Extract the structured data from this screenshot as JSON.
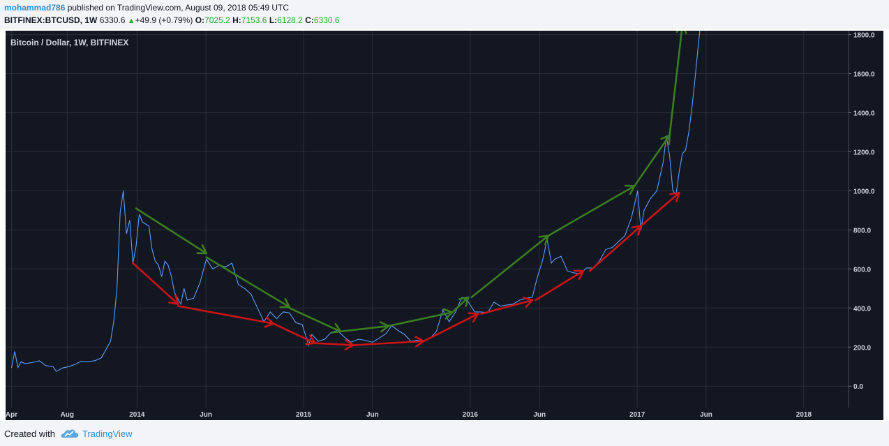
{
  "header": {
    "author": "mohammad786",
    "published_text": "published on TradingView.com, August 09, 2018 05:49 UTC",
    "symbol": "BITFINEX:BTCUSD, 1W",
    "price": "6330.6",
    "change": "+49.9 (+0.79%)",
    "o_label": "O:",
    "o_value": "7025.2",
    "h_label": "H:",
    "h_value": "7153.6",
    "l_label": "L:",
    "l_value": "6128.2",
    "c_label": "C:",
    "c_value": "6330.6"
  },
  "footer": {
    "created_with": "Created with",
    "brand": "TradingView"
  },
  "colors": {
    "background": "#131722",
    "grid": "#2a2e39",
    "price_line": "#5b9cf6",
    "arrow_green": "#3a7d1e",
    "arrow_red": "#cc1414",
    "tick_text": "#d1d4dc",
    "positive": "#22ab28"
  },
  "chart_data": {
    "type": "line",
    "title": "Bitcoin / Dollar, 1W, BITFINEX",
    "x_ticks": [
      {
        "label": "Apr",
        "date": "2013-04"
      },
      {
        "label": "Aug",
        "date": "2013-08"
      },
      {
        "label": "2014",
        "date": "2014-01"
      },
      {
        "label": "Jun",
        "date": "2014-06"
      },
      {
        "label": "2015",
        "date": "2015-01"
      },
      {
        "label": "Jun",
        "date": "2015-06"
      },
      {
        "label": "2016",
        "date": "2016-01"
      },
      {
        "label": "Jun",
        "date": "2016-06"
      },
      {
        "label": "2017",
        "date": "2017-01"
      },
      {
        "label": "Jun",
        "date": "2017-06"
      },
      {
        "label": "2018",
        "date": "2018-01"
      }
    ],
    "y_ticks": [
      "0.0",
      "200.0",
      "400.0",
      "600.0",
      "800.0",
      "1000.0",
      "1200.0",
      "1400.0",
      "1600.0",
      "1800.0"
    ],
    "ylim": [
      -110,
      1820
    ],
    "xlim": [
      "2013-03-19",
      "2018-04-09"
    ],
    "grid": true,
    "series": [
      {
        "color": "#5b9cf6",
        "points": [
          [
            "2013-04-01",
            93
          ],
          [
            "2013-04-08",
            178
          ],
          [
            "2013-04-15",
            95
          ],
          [
            "2013-04-22",
            125
          ],
          [
            "2013-05-01",
            115
          ],
          [
            "2013-05-15",
            120
          ],
          [
            "2013-06-01",
            130
          ],
          [
            "2013-06-15",
            105
          ],
          [
            "2013-07-01",
            100
          ],
          [
            "2013-07-08",
            75
          ],
          [
            "2013-07-22",
            93
          ],
          [
            "2013-08-05",
            100
          ],
          [
            "2013-08-19",
            112
          ],
          [
            "2013-09-01",
            128
          ],
          [
            "2013-09-15",
            125
          ],
          [
            "2013-10-01",
            130
          ],
          [
            "2013-10-15",
            145
          ],
          [
            "2013-10-28",
            200
          ],
          [
            "2013-11-04",
            230
          ],
          [
            "2013-11-11",
            330
          ],
          [
            "2013-11-18",
            500
          ],
          [
            "2013-11-25",
            890
          ],
          [
            "2013-12-02",
            1000
          ],
          [
            "2013-12-09",
            780
          ],
          [
            "2013-12-16",
            850
          ],
          [
            "2013-12-23",
            630
          ],
          [
            "2013-12-30",
            720
          ],
          [
            "2014-01-06",
            880
          ],
          [
            "2014-01-13",
            840
          ],
          [
            "2014-01-20",
            830
          ],
          [
            "2014-01-27",
            820
          ],
          [
            "2014-02-03",
            700
          ],
          [
            "2014-02-10",
            640
          ],
          [
            "2014-02-17",
            620
          ],
          [
            "2014-02-24",
            560
          ],
          [
            "2014-03-03",
            640
          ],
          [
            "2014-03-10",
            620
          ],
          [
            "2014-03-17",
            565
          ],
          [
            "2014-03-24",
            480
          ],
          [
            "2014-04-07",
            420
          ],
          [
            "2014-04-14",
            500
          ],
          [
            "2014-04-21",
            440
          ],
          [
            "2014-05-05",
            450
          ],
          [
            "2014-05-19",
            530
          ],
          [
            "2014-06-02",
            650
          ],
          [
            "2014-06-16",
            600
          ],
          [
            "2014-07-01",
            620
          ],
          [
            "2014-07-14",
            610
          ],
          [
            "2014-07-28",
            630
          ],
          [
            "2014-08-11",
            520
          ],
          [
            "2014-08-25",
            500
          ],
          [
            "2014-09-08",
            470
          ],
          [
            "2014-09-22",
            400
          ],
          [
            "2014-10-06",
            330
          ],
          [
            "2014-10-20",
            380
          ],
          [
            "2014-11-03",
            345
          ],
          [
            "2014-11-17",
            380
          ],
          [
            "2014-12-01",
            375
          ],
          [
            "2014-12-15",
            325
          ],
          [
            "2014-12-29",
            315
          ],
          [
            "2015-01-12",
            210
          ],
          [
            "2015-01-19",
            265
          ],
          [
            "2015-02-02",
            230
          ],
          [
            "2015-02-16",
            240
          ],
          [
            "2015-03-02",
            275
          ],
          [
            "2015-03-16",
            285
          ],
          [
            "2015-04-01",
            250
          ],
          [
            "2015-04-15",
            225
          ],
          [
            "2015-05-01",
            240
          ],
          [
            "2015-05-15",
            235
          ],
          [
            "2015-06-01",
            225
          ],
          [
            "2015-06-15",
            245
          ],
          [
            "2015-07-01",
            270
          ],
          [
            "2015-07-13",
            310
          ],
          [
            "2015-07-27",
            285
          ],
          [
            "2015-08-10",
            265
          ],
          [
            "2015-08-24",
            230
          ],
          [
            "2015-09-07",
            235
          ],
          [
            "2015-09-21",
            230
          ],
          [
            "2015-10-05",
            245
          ],
          [
            "2015-10-19",
            280
          ],
          [
            "2015-11-02",
            390
          ],
          [
            "2015-11-16",
            330
          ],
          [
            "2015-11-30",
            380
          ],
          [
            "2015-12-14",
            455
          ],
          [
            "2015-12-28",
            430
          ],
          [
            "2016-01-11",
            380
          ],
          [
            "2016-01-25",
            380
          ],
          [
            "2016-02-08",
            375
          ],
          [
            "2016-02-22",
            430
          ],
          [
            "2016-03-07",
            410
          ],
          [
            "2016-03-21",
            415
          ],
          [
            "2016-04-04",
            420
          ],
          [
            "2016-04-18",
            440
          ],
          [
            "2016-05-02",
            450
          ],
          [
            "2016-05-16",
            455
          ],
          [
            "2016-05-23",
            520
          ],
          [
            "2016-05-30",
            580
          ],
          [
            "2016-06-06",
            630
          ],
          [
            "2016-06-13",
            700
          ],
          [
            "2016-06-17",
            760
          ],
          [
            "2016-06-27",
            630
          ],
          [
            "2016-07-04",
            650
          ],
          [
            "2016-07-18",
            665
          ],
          [
            "2016-08-01",
            590
          ],
          [
            "2016-08-15",
            580
          ],
          [
            "2016-08-29",
            575
          ],
          [
            "2016-09-12",
            605
          ],
          [
            "2016-09-26",
            605
          ],
          [
            "2016-10-10",
            640
          ],
          [
            "2016-10-24",
            700
          ],
          [
            "2016-11-07",
            710
          ],
          [
            "2016-11-21",
            740
          ],
          [
            "2016-12-05",
            770
          ],
          [
            "2016-12-19",
            860
          ],
          [
            "2017-01-02",
            1000
          ],
          [
            "2017-01-09",
            800
          ],
          [
            "2017-01-16",
            900
          ],
          [
            "2017-01-30",
            960
          ],
          [
            "2017-02-13",
            1000
          ],
          [
            "2017-02-27",
            1150
          ],
          [
            "2017-03-06",
            1280
          ],
          [
            "2017-03-13",
            1180
          ],
          [
            "2017-03-20",
            1000
          ],
          [
            "2017-03-27",
            980
          ],
          [
            "2017-04-03",
            1100
          ],
          [
            "2017-04-10",
            1190
          ],
          [
            "2017-04-17",
            1210
          ],
          [
            "2017-04-24",
            1300
          ],
          [
            "2017-05-01",
            1430
          ],
          [
            "2017-05-08",
            1580
          ],
          [
            "2017-05-15",
            1750
          ],
          [
            "2017-05-22",
            1900
          ]
        ]
      }
    ],
    "annotations": {
      "green_arrows": [
        [
          [
            "2013-12-30",
            910
          ],
          [
            "2014-06-02",
            680
          ]
        ],
        [
          [
            "2014-06-02",
            660
          ],
          [
            "2014-12-01",
            405
          ]
        ],
        [
          [
            "2014-12-01",
            400
          ],
          [
            "2015-03-23",
            280
          ]
        ],
        [
          [
            "2015-03-23",
            280
          ],
          [
            "2015-07-06",
            308
          ]
        ],
        [
          [
            "2015-07-06",
            308
          ],
          [
            "2015-11-23",
            378
          ]
        ],
        [
          [
            "2015-11-23",
            378
          ],
          [
            "2015-12-28",
            455
          ]
        ],
        [
          [
            "2016-01-04",
            455
          ],
          [
            "2016-06-20",
            770
          ]
        ],
        [
          [
            "2016-06-20",
            770
          ],
          [
            "2016-12-26",
            1025
          ]
        ],
        [
          [
            "2016-12-26",
            1025
          ],
          [
            "2017-03-13",
            1285
          ]
        ],
        [
          [
            "2017-03-13",
            1285
          ],
          [
            "2017-04-10",
            1850
          ]
        ]
      ],
      "red_arrows": [
        [
          [
            "2013-12-23",
            630
          ],
          [
            "2014-04-01",
            420
          ]
        ],
        [
          [
            "2014-04-01",
            410
          ],
          [
            "2014-10-27",
            320
          ]
        ],
        [
          [
            "2014-10-27",
            320
          ],
          [
            "2015-01-26",
            220
          ]
        ],
        [
          [
            "2015-01-26",
            220
          ],
          [
            "2015-04-20",
            210
          ]
        ],
        [
          [
            "2015-04-20",
            210
          ],
          [
            "2015-09-21",
            230
          ]
        ],
        [
          [
            "2015-09-21",
            230
          ],
          [
            "2016-01-18",
            370
          ]
        ],
        [
          [
            "2016-01-25",
            370
          ],
          [
            "2016-05-16",
            440
          ]
        ],
        [
          [
            "2016-05-23",
            440
          ],
          [
            "2016-09-05",
            590
          ]
        ],
        [
          [
            "2016-09-19",
            590
          ],
          [
            "2017-01-09",
            820
          ]
        ],
        [
          [
            "2017-01-09",
            820
          ],
          [
            "2017-04-03",
            990
          ]
        ]
      ]
    }
  }
}
